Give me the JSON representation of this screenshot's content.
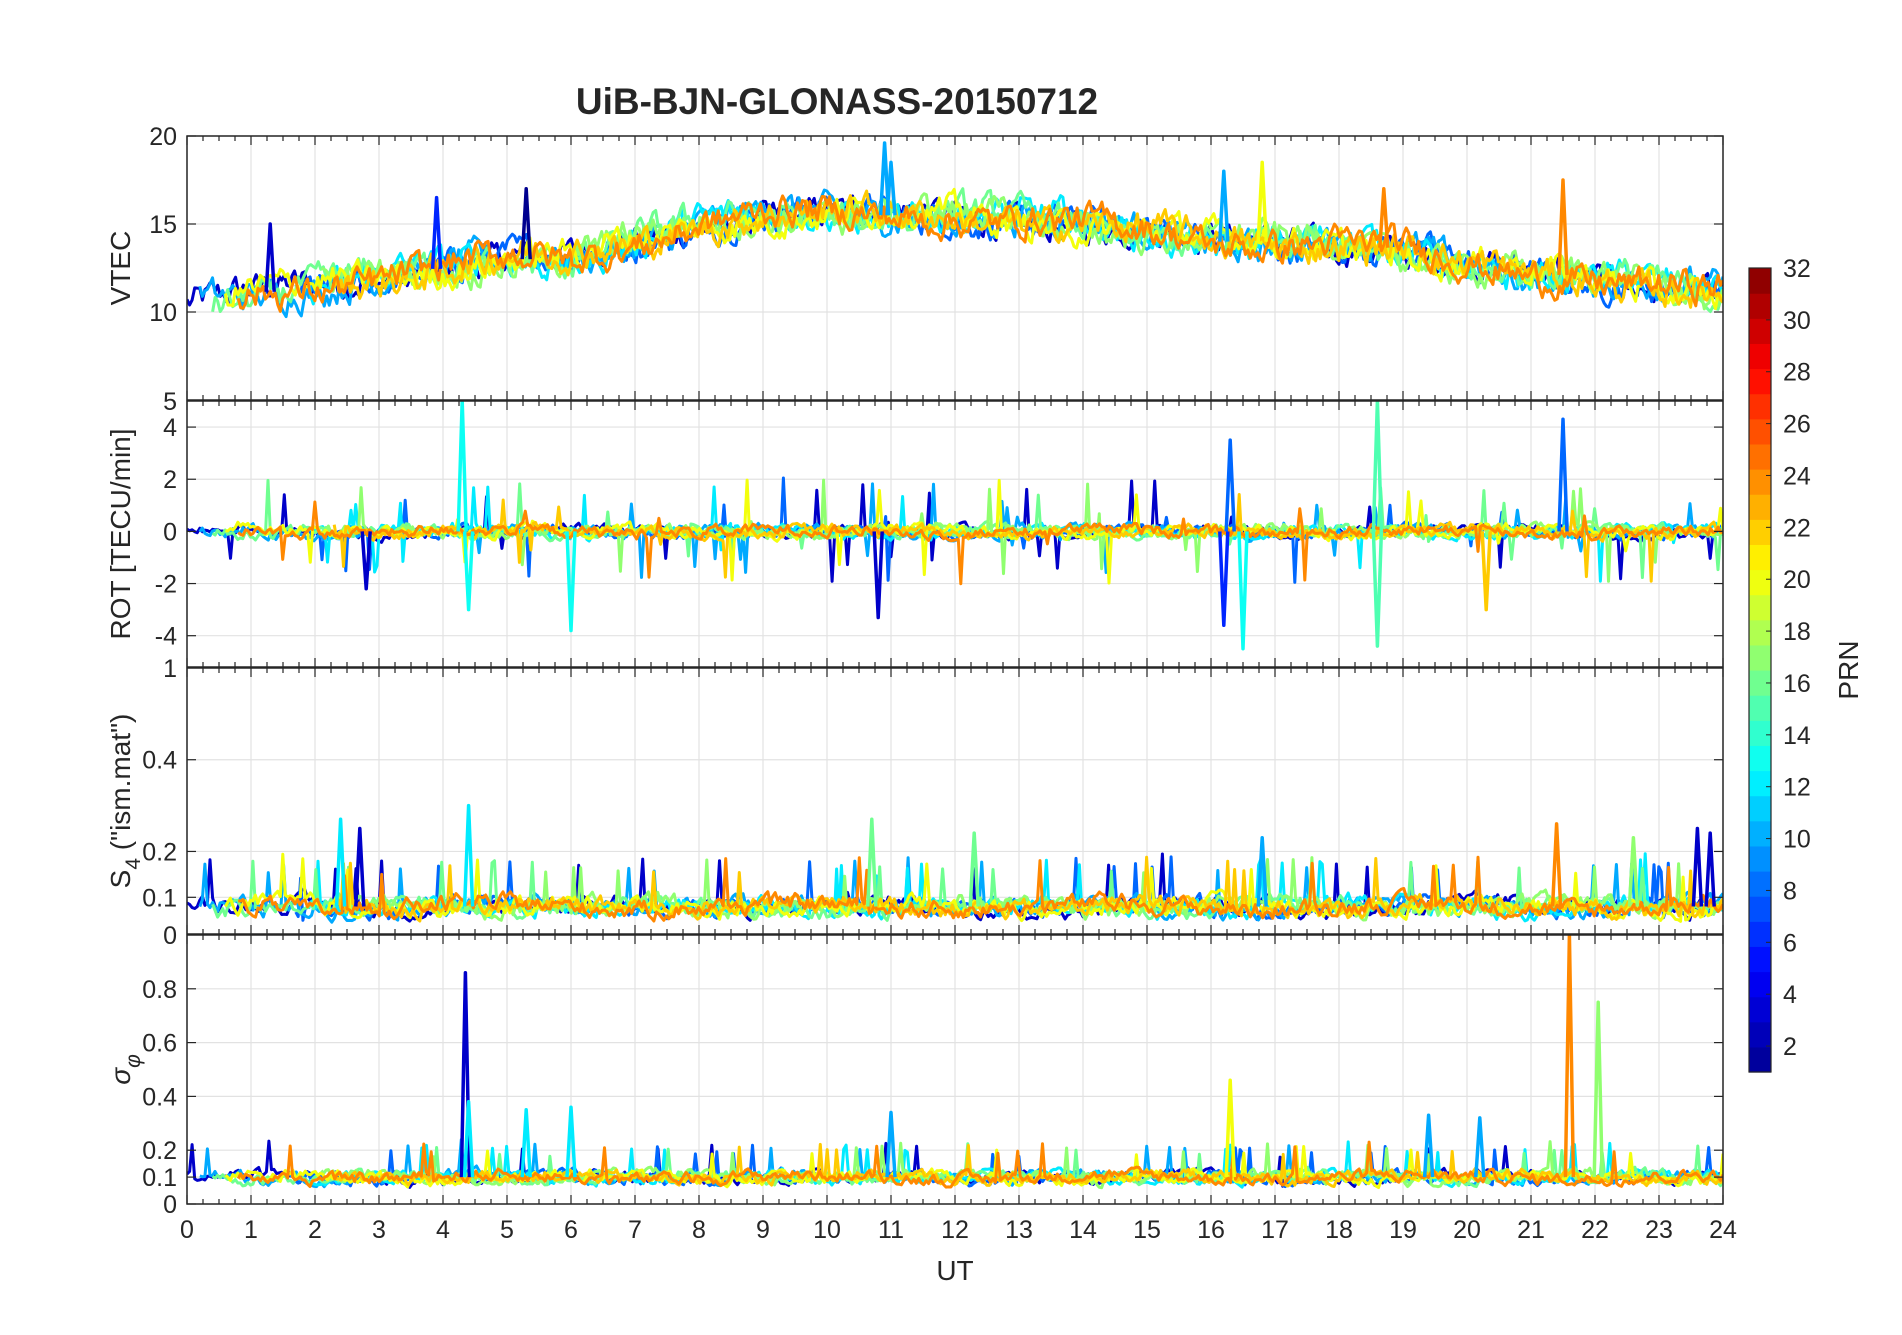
{
  "title": "UiB-BJN-GLONASS-20150712",
  "chart_data": [
    {
      "id": "vtec",
      "type": "line",
      "ylabel": "VTEC",
      "ylabel_sub": "",
      "ylim": [
        5,
        20
      ],
      "yticks": [
        10,
        15,
        20
      ],
      "extra_ytick_labels": [],
      "base": [
        [
          0,
          10.5
        ],
        [
          1,
          11
        ],
        [
          2,
          11.5
        ],
        [
          3,
          12
        ],
        [
          4,
          12.5
        ],
        [
          5,
          13
        ],
        [
          6,
          13
        ],
        [
          7,
          14
        ],
        [
          8,
          15
        ],
        [
          9,
          15.5
        ],
        [
          10,
          15.5
        ],
        [
          11,
          15.5
        ],
        [
          12,
          15.5
        ],
        [
          13,
          15.3
        ],
        [
          14,
          15
        ],
        [
          15,
          14.5
        ],
        [
          16,
          14
        ],
        [
          17,
          14
        ],
        [
          18,
          14
        ],
        [
          19,
          13.5
        ],
        [
          20,
          12.5
        ],
        [
          21,
          12.2
        ],
        [
          22,
          12
        ],
        [
          23,
          11.5
        ],
        [
          24,
          11
        ]
      ],
      "noise": 1.4,
      "spikes": [
        [
          1.3,
          15,
          3
        ],
        [
          3.9,
          16.5,
          6
        ],
        [
          5.3,
          17,
          1
        ],
        [
          10.9,
          19.6,
          10
        ],
        [
          11,
          18.5,
          10
        ],
        [
          16.2,
          18,
          10
        ],
        [
          16.8,
          18.5,
          20
        ],
        [
          18.7,
          17,
          24
        ],
        [
          21.5,
          17.5,
          24
        ]
      ]
    },
    {
      "id": "rot",
      "type": "line",
      "ylabel": "ROT [TECU/min]",
      "ylabel_sub": "",
      "ylim": [
        -5.2,
        5
      ],
      "yticks": [
        -4,
        -2,
        0,
        2,
        4
      ],
      "extra_ytick_labels": [
        "5"
      ],
      "base": [
        [
          0,
          0
        ],
        [
          24,
          0
        ]
      ],
      "noise": 0.35,
      "spikes": [
        [
          4.3,
          5,
          13
        ],
        [
          4.4,
          -3,
          13
        ],
        [
          6,
          -3.8,
          13
        ],
        [
          10.8,
          -3.3,
          3
        ],
        [
          16.2,
          -3.6,
          6
        ],
        [
          16.5,
          -4.5,
          13
        ],
        [
          18.6,
          5,
          15
        ],
        [
          18.6,
          -4.4,
          15
        ],
        [
          21.5,
          4.3,
          8
        ],
        [
          2.8,
          -2.2,
          3
        ],
        [
          20.3,
          -3,
          22
        ],
        [
          16.3,
          3.5,
          8
        ]
      ]
    },
    {
      "id": "s4",
      "type": "line",
      "ylabel": "S",
      "ylabel_sub": "4",
      "ylabel_suffix": " (\"ism.mat\")",
      "ylim": [
        0.02,
        0.6
      ],
      "yticks": [
        0.1,
        0.2,
        0.4
      ],
      "extra_ytick_labels": [
        "1"
      ],
      "base": [
        [
          0,
          0.08
        ],
        [
          24,
          0.08
        ]
      ],
      "noise": 0.03,
      "spikes": [
        [
          2.4,
          0.27,
          12
        ],
        [
          2.7,
          0.25,
          3
        ],
        [
          4.4,
          0.3,
          12
        ],
        [
          12.3,
          0.24,
          16
        ],
        [
          16.8,
          0.23,
          10
        ],
        [
          21.4,
          0.26,
          24
        ],
        [
          23.6,
          0.25,
          3
        ],
        [
          23.8,
          0.24,
          3
        ],
        [
          22.6,
          0.23,
          17
        ],
        [
          10.7,
          0.27,
          16
        ]
      ]
    },
    {
      "id": "sigma",
      "type": "line",
      "ylabel": "σ",
      "ylabel_sub": "φ",
      "ylim": [
        0,
        1
      ],
      "yticks": [
        0,
        0.1,
        0.2,
        0.4,
        0.6,
        0.8
      ],
      "extra_ytick_labels": [
        "0"
      ],
      "base": [
        [
          0,
          0.1
        ],
        [
          24,
          0.1
        ]
      ],
      "noise": 0.035,
      "spikes": [
        [
          4.35,
          0.86,
          3
        ],
        [
          21.6,
          1,
          24
        ],
        [
          22.05,
          0.75,
          17
        ],
        [
          16.3,
          0.46,
          20
        ],
        [
          4.4,
          0.38,
          12
        ],
        [
          5.3,
          0.35,
          12
        ],
        [
          6,
          0.36,
          12
        ],
        [
          11,
          0.34,
          10
        ],
        [
          19.4,
          0.33,
          10
        ],
        [
          20.2,
          0.32,
          10
        ]
      ]
    }
  ],
  "xaxis": {
    "label": "UT",
    "range": [
      0,
      24
    ],
    "ticks": [
      "0",
      "1",
      "2",
      "3",
      "4",
      "5",
      "6",
      "7",
      "8",
      "9",
      "10",
      "11",
      "12",
      "13",
      "14",
      "15",
      "16",
      "17",
      "18",
      "19",
      "20",
      "21",
      "22",
      "23",
      "24"
    ]
  },
  "colorbar": {
    "label": "PRN",
    "range": [
      1,
      32
    ],
    "ticks": [
      "2",
      "4",
      "6",
      "8",
      "10",
      "12",
      "14",
      "16",
      "18",
      "20",
      "22",
      "24",
      "26",
      "28",
      "30",
      "32"
    ],
    "colormap": [
      "#00008f",
      "#0000ff",
      "#0080ff",
      "#00ffff",
      "#80ff80",
      "#ffff00",
      "#ff8000",
      "#ff0000",
      "#800000"
    ]
  },
  "series_prns": [
    3,
    8,
    10,
    12,
    16,
    17,
    20,
    22,
    24
  ]
}
